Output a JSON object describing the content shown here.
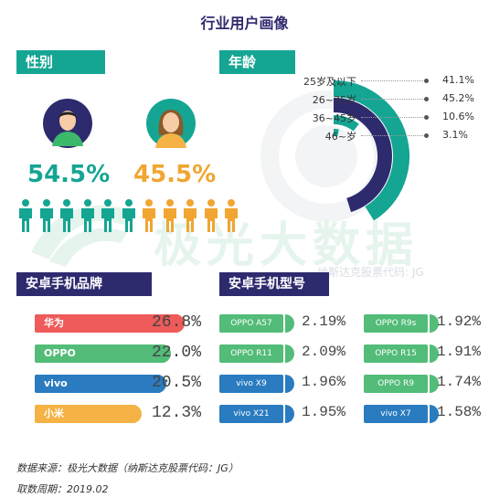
{
  "title": "行业用户画像",
  "watermark": {
    "text": "极光大数据",
    "sub": "纳斯达克股票代码: JG"
  },
  "gender": {
    "header": "性别",
    "male_pct": "54.5%",
    "female_pct": "45.5%",
    "male_color": "#15a593",
    "female_color": "#f0a631"
  },
  "age": {
    "header": "年龄",
    "labels": [
      "25岁及以下",
      "26~35岁",
      "36~45岁",
      "46~岁"
    ],
    "value_labels": [
      "41.1%",
      "45.2%",
      "10.6%",
      "3.1%"
    ]
  },
  "brands": {
    "header": "安卓手机品牌",
    "items": [
      {
        "label": "华为",
        "value_label": "26.8%",
        "color": "#ef5a5a"
      },
      {
        "label": "OPPO",
        "value_label": "22.0%",
        "color": "#52bc78"
      },
      {
        "label": "vivo",
        "value_label": "20.5%",
        "color": "#2a7bc0"
      },
      {
        "label": "小米",
        "value_label": "12.3%",
        "color": "#f5b245"
      }
    ]
  },
  "models": {
    "header": "安卓手机型号",
    "left": [
      {
        "label": "OPPO A57",
        "value_label": "2.19%",
        "color": "#52bc78"
      },
      {
        "label": "OPPO R11",
        "value_label": "2.09%",
        "color": "#52bc78"
      },
      {
        "label": "vivo X9",
        "value_label": "1.96%",
        "color": "#2a7bc0"
      },
      {
        "label": "vivo X21",
        "value_label": "1.95%",
        "color": "#2a7bc0"
      }
    ],
    "right": [
      {
        "label": "OPPO R9s",
        "value_label": "1.92%",
        "color": "#52bc78"
      },
      {
        "label": "OPPO R15",
        "value_label": "1.91%",
        "color": "#52bc78"
      },
      {
        "label": "OPPO R9",
        "value_label": "1.74%",
        "color": "#52bc78"
      },
      {
        "label": "vivo X7",
        "value_label": "1.58%",
        "color": "#2a7bc0"
      }
    ]
  },
  "footer": {
    "source": "数据来源：极光大数据（纳斯达克股票代码：JG）",
    "period": "取数周期：2019.02"
  },
  "chart_data": [
    {
      "type": "pie",
      "title": "性别",
      "categories": [
        "male",
        "female"
      ],
      "values": [
        54.5,
        45.5
      ]
    },
    {
      "type": "bar",
      "title": "年龄",
      "categories": [
        "25岁及以下",
        "26~35岁",
        "36~45岁",
        "46~岁"
      ],
      "values": [
        41.1,
        45.2,
        10.6,
        3.1
      ],
      "colors": [
        "#15a593",
        "#2e2a6e",
        "#15a593",
        "#15a593"
      ]
    },
    {
      "type": "bar",
      "title": "安卓手机品牌",
      "categories": [
        "华为",
        "OPPO",
        "vivo",
        "小米"
      ],
      "values": [
        26.8,
        22.0,
        20.5,
        12.3
      ]
    },
    {
      "type": "bar",
      "title": "安卓手机型号",
      "categories": [
        "OPPO A57",
        "OPPO R11",
        "vivo X9",
        "vivo X21",
        "OPPO R9s",
        "OPPO R15",
        "OPPO R9",
        "vivo X7"
      ],
      "values": [
        2.19,
        2.09,
        1.96,
        1.95,
        1.92,
        1.91,
        1.74,
        1.58
      ]
    }
  ]
}
